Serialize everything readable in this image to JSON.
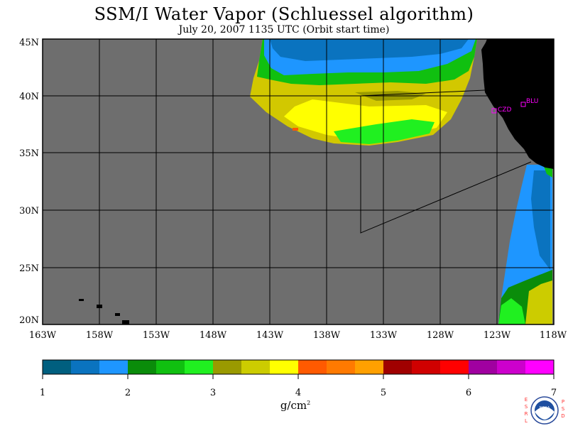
{
  "title": "SSM/I Water Vapor (Schluessel algorithm)",
  "subtitle": "July 20, 2007  1135 UTC  (Orbit start time)",
  "lat_labels": [
    "45N",
    "40N",
    "35N",
    "30N",
    "25N",
    "20N"
  ],
  "lon_labels": [
    "163W",
    "158W",
    "153W",
    "148W",
    "143W",
    "138W",
    "133W",
    "128W",
    "123W",
    "118W"
  ],
  "stations": [
    {
      "label": "CZD",
      "lon": -123.3,
      "lat": 38.6
    },
    {
      "label": "BLU",
      "lon": -120.7,
      "lat": 39.3
    }
  ],
  "colorbar": {
    "tick_labels": [
      "1",
      "2",
      "3",
      "4",
      "5",
      "6",
      "7"
    ],
    "colors": [
      "#005f7f",
      "#0a73bf",
      "#1e96ff",
      "#0a8c0a",
      "#10c010",
      "#20f020",
      "#9a9a00",
      "#cccc00",
      "#ffff00",
      "#ff5a00",
      "#ff7a00",
      "#ffa000",
      "#a00000",
      "#d00000",
      "#ff0000",
      "#a000a0",
      "#cc00cc",
      "#ff00ff"
    ]
  },
  "units": "g/cm",
  "units_sup": "2",
  "logo": {
    "left_letters": "ESRL",
    "right_letters": "PSD",
    "center": "NOAA"
  },
  "colors": {
    "ocean_no_data": "#6e6e6e",
    "land": "#000000",
    "station": "#ff00ff"
  }
}
